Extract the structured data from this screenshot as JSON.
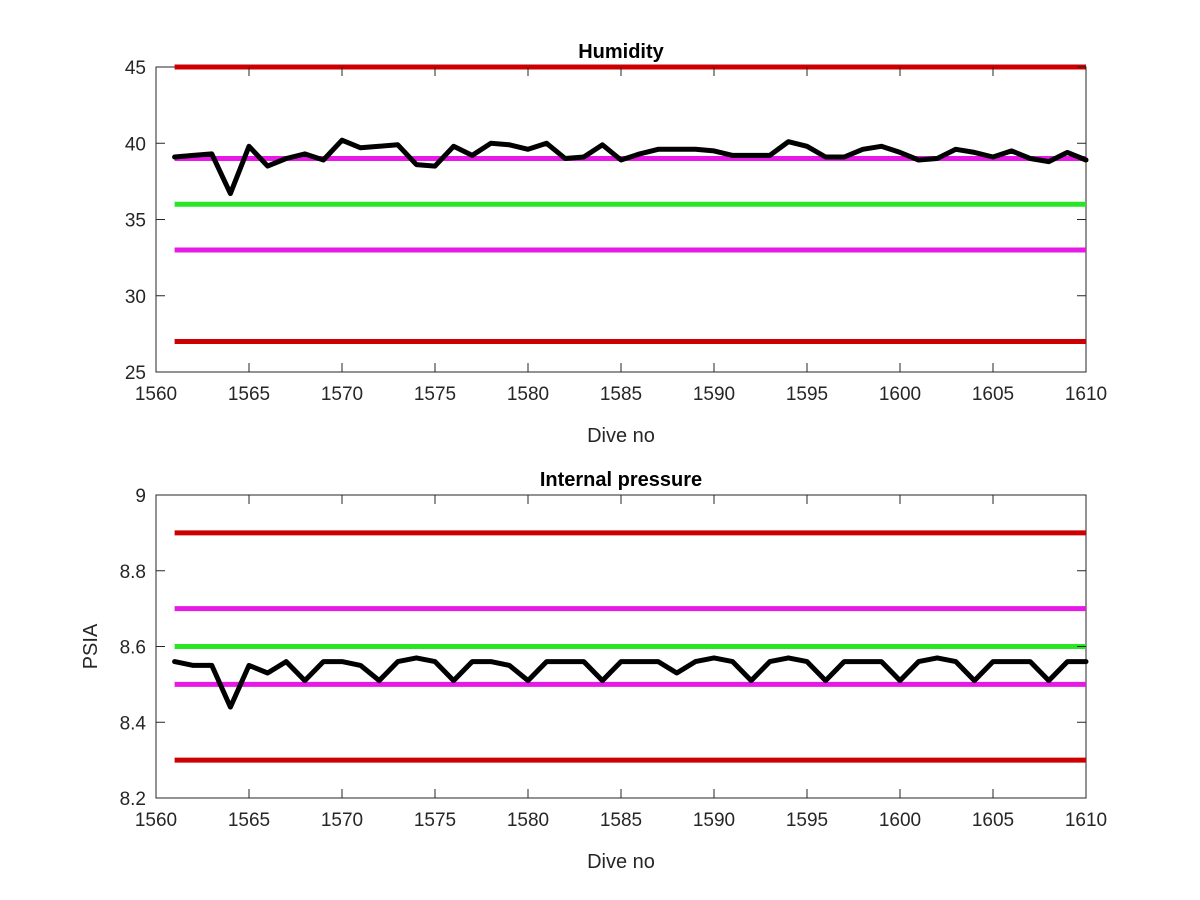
{
  "chart_data": [
    {
      "type": "line",
      "title": "Humidity",
      "xlabel": "Dive no",
      "ylabel": "",
      "xlim": [
        1560,
        1610
      ],
      "ylim": [
        25,
        45
      ],
      "xticks": [
        1560,
        1565,
        1570,
        1575,
        1580,
        1585,
        1590,
        1595,
        1600,
        1605,
        1610
      ],
      "yticks": [
        25,
        30,
        35,
        40,
        45
      ],
      "grid": false,
      "reference_lines": [
        {
          "y": 45,
          "color": "#cc0000"
        },
        {
          "y": 39,
          "color": "#e619e6"
        },
        {
          "y": 36,
          "color": "#26e626"
        },
        {
          "y": 33,
          "color": "#e619e6"
        },
        {
          "y": 27,
          "color": "#cc0000"
        }
      ],
      "series": [
        {
          "color": "#000000",
          "x": [
            1561,
            1562,
            1563,
            1564,
            1565,
            1566,
            1567,
            1568,
            1569,
            1570,
            1571,
            1572,
            1573,
            1574,
            1575,
            1576,
            1577,
            1578,
            1579,
            1580,
            1581,
            1582,
            1583,
            1584,
            1585,
            1586,
            1587,
            1588,
            1589,
            1590,
            1591,
            1592,
            1593,
            1594,
            1595,
            1596,
            1597,
            1598,
            1599,
            1600,
            1601,
            1602,
            1603,
            1604,
            1605,
            1606,
            1607,
            1608,
            1609,
            1610
          ],
          "y": [
            39.1,
            39.2,
            39.3,
            36.7,
            39.8,
            38.5,
            39.0,
            39.3,
            38.9,
            40.2,
            39.7,
            39.8,
            39.9,
            38.6,
            38.5,
            39.8,
            39.2,
            40.0,
            39.9,
            39.6,
            40.0,
            39.0,
            39.1,
            39.9,
            38.9,
            39.3,
            39.6,
            39.6,
            39.6,
            39.5,
            39.2,
            39.2,
            39.2,
            40.1,
            39.8,
            39.1,
            39.1,
            39.6,
            39.8,
            39.4,
            38.9,
            39.0,
            39.6,
            39.4,
            39.1,
            39.5,
            39.0,
            38.8,
            39.4,
            38.9
          ]
        }
      ]
    },
    {
      "type": "line",
      "title": "Internal pressure",
      "xlabel": "Dive no",
      "ylabel": "PSIA",
      "xlim": [
        1560,
        1610
      ],
      "ylim": [
        8.2,
        9.0
      ],
      "xticks": [
        1560,
        1565,
        1570,
        1575,
        1580,
        1585,
        1590,
        1595,
        1600,
        1605,
        1610
      ],
      "yticks": [
        8.2,
        8.4,
        8.6,
        8.8,
        9.0
      ],
      "yticklabels": [
        "8.2",
        "8.4",
        "8.6",
        "8.8",
        "9"
      ],
      "grid": false,
      "reference_lines": [
        {
          "y": 8.9,
          "color": "#cc0000"
        },
        {
          "y": 8.7,
          "color": "#e619e6"
        },
        {
          "y": 8.6,
          "color": "#26e626"
        },
        {
          "y": 8.5,
          "color": "#e619e6"
        },
        {
          "y": 8.3,
          "color": "#cc0000"
        }
      ],
      "series": [
        {
          "color": "#000000",
          "x": [
            1561,
            1562,
            1563,
            1564,
            1565,
            1566,
            1567,
            1568,
            1569,
            1570,
            1571,
            1572,
            1573,
            1574,
            1575,
            1576,
            1577,
            1578,
            1579,
            1580,
            1581,
            1582,
            1583,
            1584,
            1585,
            1586,
            1587,
            1588,
            1589,
            1590,
            1591,
            1592,
            1593,
            1594,
            1595,
            1596,
            1597,
            1598,
            1599,
            1600,
            1601,
            1602,
            1603,
            1604,
            1605,
            1606,
            1607,
            1608,
            1609,
            1610
          ],
          "y": [
            8.56,
            8.55,
            8.55,
            8.44,
            8.55,
            8.53,
            8.56,
            8.51,
            8.56,
            8.56,
            8.55,
            8.51,
            8.56,
            8.57,
            8.56,
            8.51,
            8.56,
            8.56,
            8.55,
            8.51,
            8.56,
            8.56,
            8.56,
            8.51,
            8.56,
            8.56,
            8.56,
            8.53,
            8.56,
            8.57,
            8.56,
            8.51,
            8.56,
            8.57,
            8.56,
            8.51,
            8.56,
            8.56,
            8.56,
            8.51,
            8.56,
            8.57,
            8.56,
            8.51,
            8.56,
            8.56,
            8.56,
            8.51,
            8.56,
            8.56
          ]
        }
      ]
    }
  ]
}
